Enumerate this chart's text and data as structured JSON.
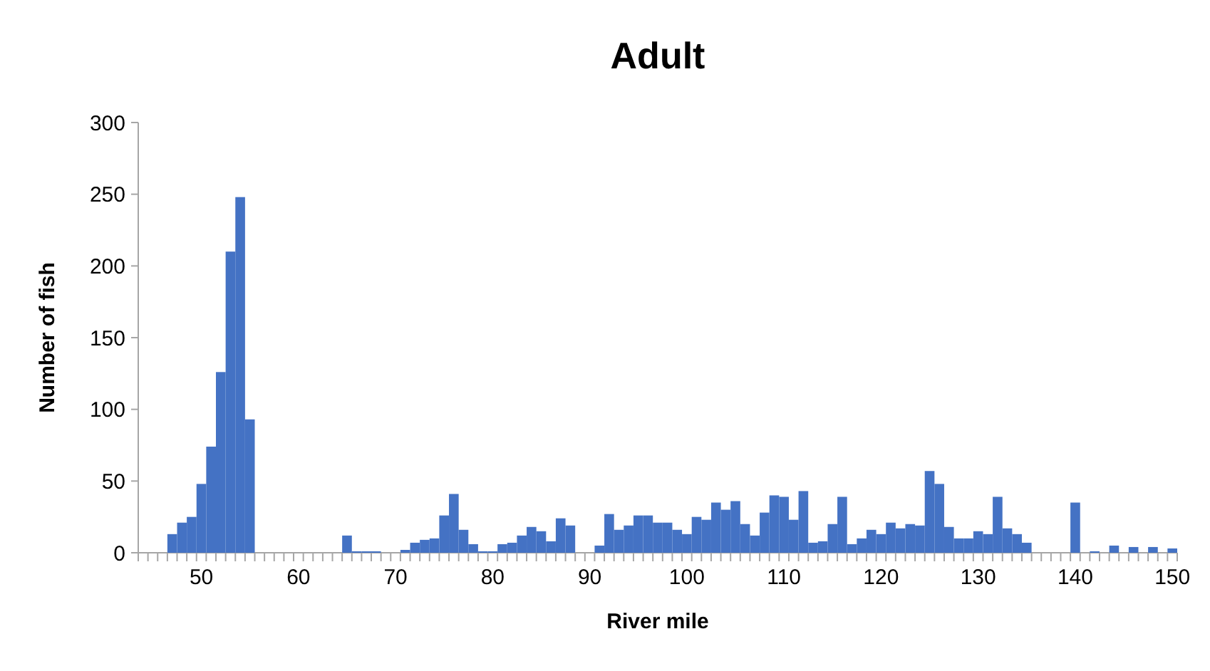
{
  "chart_data": {
    "type": "bar",
    "title": "Adult",
    "xlabel": "River mile",
    "ylabel": "Number of fish",
    "color": "#4472c4",
    "categories": [
      null,
      null,
      null,
      null,
      null,
      null,
      "50",
      null,
      null,
      null,
      null,
      null,
      null,
      null,
      null,
      null,
      "60",
      null,
      null,
      null,
      null,
      null,
      null,
      null,
      null,
      null,
      "70",
      null,
      null,
      null,
      null,
      null,
      null,
      null,
      null,
      null,
      "80",
      null,
      null,
      null,
      null,
      null,
      null,
      null,
      null,
      null,
      "90",
      null,
      null,
      null,
      null,
      null,
      null,
      null,
      null,
      null,
      "100",
      null,
      null,
      null,
      null,
      null,
      null,
      null,
      null,
      null,
      "110",
      null,
      null,
      null,
      null,
      null,
      null,
      null,
      null,
      null,
      "120",
      null,
      null,
      null,
      null,
      null,
      null,
      null,
      null,
      null,
      "130",
      null,
      null,
      null,
      null,
      null,
      null,
      null,
      null,
      null,
      "140",
      null,
      null,
      null,
      null,
      null,
      null,
      null,
      null,
      null,
      "150"
    ],
    "values": [
      0,
      0,
      0,
      13,
      21,
      25,
      48,
      74,
      126,
      210,
      248,
      93,
      0,
      0,
      0,
      0,
      0,
      0,
      0,
      0,
      0,
      12,
      1,
      1,
      1,
      0,
      0,
      2,
      7,
      9,
      10,
      26,
      41,
      16,
      6,
      1,
      1,
      6,
      7,
      12,
      18,
      15,
      8,
      24,
      19,
      0,
      0,
      5,
      27,
      16,
      19,
      26,
      26,
      21,
      21,
      16,
      13,
      25,
      23,
      35,
      30,
      36,
      20,
      12,
      28,
      40,
      39,
      23,
      43,
      7,
      8,
      20,
      39,
      6,
      10,
      16,
      13,
      21,
      17,
      20,
      19,
      57,
      48,
      18,
      10,
      10,
      15,
      13,
      39,
      17,
      13,
      7,
      0,
      0,
      0,
      0,
      35,
      0,
      1,
      0,
      5,
      0,
      4,
      0,
      4,
      0,
      3
    ],
    "ylim": [
      0,
      300
    ],
    "yticks": [
      0,
      50,
      100,
      150,
      200,
      250,
      300
    ],
    "grid": false
  }
}
